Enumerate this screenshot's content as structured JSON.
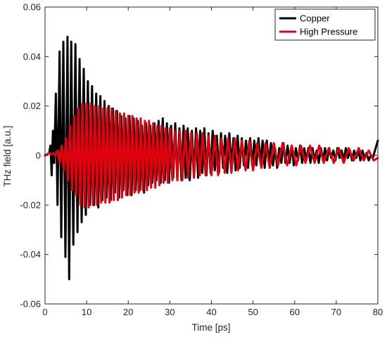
{
  "chart_data": {
    "type": "line",
    "title": "",
    "xlabel": "Time [ps]",
    "ylabel": "THz field [a.u.]",
    "xlim": [
      0,
      80
    ],
    "ylim": [
      -0.06,
      0.06
    ],
    "x_ticks": [
      0,
      10,
      20,
      30,
      40,
      50,
      60,
      70,
      80
    ],
    "y_ticks": [
      -0.06,
      -0.04,
      -0.02,
      0,
      0.02,
      0.04,
      0.06
    ],
    "x_tick_labels": [
      "0",
      "10",
      "20",
      "30",
      "40",
      "50",
      "60",
      "70",
      "80"
    ],
    "y_tick_labels": [
      "-0.06",
      "-0.04",
      "-0.02",
      "0",
      "0.02",
      "0.04",
      "0.06"
    ],
    "grid": false,
    "legend_position": "top-right",
    "series": [
      {
        "name": "Copper",
        "color": "#000000",
        "points": [
          [
            0,
            0
          ],
          [
            0.5,
            0.0005
          ],
          [
            1.0,
            0.001
          ],
          [
            1.3,
            0.004
          ],
          [
            1.6,
            -0.008
          ],
          [
            1.9,
            0.01
          ],
          [
            2.2,
            -0.003
          ],
          [
            2.6,
            0.025
          ],
          [
            3.0,
            -0.02
          ],
          [
            3.5,
            0.042
          ],
          [
            3.9,
            -0.033
          ],
          [
            4.4,
            0.046
          ],
          [
            4.9,
            -0.041
          ],
          [
            5.4,
            0.048
          ],
          [
            5.8,
            -0.05
          ],
          [
            6.3,
            0.046
          ],
          [
            6.8,
            -0.036
          ],
          [
            7.3,
            0.045
          ],
          [
            7.8,
            -0.031
          ],
          [
            8.3,
            0.039
          ],
          [
            8.8,
            -0.027
          ],
          [
            9.3,
            0.035
          ],
          [
            9.8,
            -0.024
          ],
          [
            10.3,
            0.03
          ],
          [
            10.8,
            -0.02
          ],
          [
            11.3,
            0.028
          ],
          [
            11.8,
            -0.02
          ],
          [
            12.3,
            0.025
          ],
          [
            12.8,
            -0.021
          ],
          [
            13.3,
            0.024
          ],
          [
            13.8,
            -0.018
          ],
          [
            14.3,
            0.022
          ],
          [
            14.8,
            -0.017
          ],
          [
            15.3,
            0.02
          ],
          [
            15.8,
            -0.018
          ],
          [
            16.3,
            0.019
          ],
          [
            16.8,
            -0.015
          ],
          [
            17.3,
            0.018
          ],
          [
            17.8,
            -0.017
          ],
          [
            18.3,
            0.016
          ],
          [
            18.8,
            -0.014
          ],
          [
            19.3,
            0.015
          ],
          [
            19.8,
            -0.016
          ],
          [
            20.3,
            0.016
          ],
          [
            20.8,
            -0.016
          ],
          [
            21.3,
            0.015
          ],
          [
            21.8,
            -0.014
          ],
          [
            22.3,
            0.014
          ],
          [
            22.8,
            -0.014
          ],
          [
            23.3,
            0.012
          ],
          [
            23.8,
            -0.015
          ],
          [
            24.3,
            0.013
          ],
          [
            24.8,
            -0.012
          ],
          [
            25.3,
            0.012
          ],
          [
            25.8,
            -0.011
          ],
          [
            26.3,
            0.013
          ],
          [
            26.8,
            -0.01
          ],
          [
            27.3,
            0.014
          ],
          [
            27.8,
            -0.011
          ],
          [
            28.3,
            0.015
          ],
          [
            28.8,
            -0.01
          ],
          [
            29.3,
            0.013
          ],
          [
            29.8,
            -0.011
          ],
          [
            30.3,
            0.012
          ],
          [
            30.8,
            -0.009
          ],
          [
            31.3,
            0.013
          ],
          [
            31.8,
            -0.01
          ],
          [
            32.3,
            0.011
          ],
          [
            32.8,
            -0.01
          ],
          [
            33.3,
            0.012
          ],
          [
            33.8,
            -0.009
          ],
          [
            34.3,
            0.011
          ],
          [
            34.8,
            -0.01
          ],
          [
            35.3,
            0.01
          ],
          [
            35.8,
            -0.008
          ],
          [
            36.3,
            0.011
          ],
          [
            36.8,
            -0.009
          ],
          [
            37.3,
            0.01
          ],
          [
            37.8,
            -0.007
          ],
          [
            38.3,
            0.011
          ],
          [
            38.8,
            -0.008
          ],
          [
            39.3,
            0.009
          ],
          [
            39.8,
            -0.007
          ],
          [
            40.3,
            0.01
          ],
          [
            40.8,
            -0.006
          ],
          [
            41.3,
            0.008
          ],
          [
            41.8,
            -0.007
          ],
          [
            42.3,
            0.009
          ],
          [
            42.8,
            -0.005
          ],
          [
            43.3,
            0.008
          ],
          [
            43.8,
            -0.007
          ],
          [
            44.3,
            0.009
          ],
          [
            44.8,
            -0.004
          ],
          [
            45.3,
            0.007
          ],
          [
            45.8,
            -0.006
          ],
          [
            46.3,
            0.008
          ],
          [
            46.8,
            -0.005
          ],
          [
            47.3,
            0.007
          ],
          [
            47.8,
            -0.004
          ],
          [
            48.3,
            0.006
          ],
          [
            48.8,
            -0.005
          ],
          [
            49.3,
            0.007
          ],
          [
            49.8,
            -0.004
          ],
          [
            50.3,
            0.006
          ],
          [
            50.8,
            -0.004
          ],
          [
            51.3,
            0.007
          ],
          [
            51.8,
            -0.003
          ],
          [
            52.3,
            0.006
          ],
          [
            52.8,
            -0.005
          ],
          [
            53.3,
            0.006
          ],
          [
            53.8,
            -0.003
          ],
          [
            54.3,
            0.005
          ],
          [
            54.8,
            -0.004
          ],
          [
            55.3,
            0.003
          ],
          [
            55.8,
            -0.005
          ],
          [
            56.3,
            0.003
          ],
          [
            56.8,
            -0.003
          ],
          [
            57.3,
            0.005
          ],
          [
            57.8,
            -0.003
          ],
          [
            58.3,
            0.004
          ],
          [
            58.8,
            -0.003
          ],
          [
            59.3,
            0.004
          ],
          [
            59.8,
            -0.004
          ],
          [
            60.3,
            0.003
          ],
          [
            60.8,
            -0.002
          ],
          [
            61.3,
            0.004
          ],
          [
            61.8,
            -0.003
          ],
          [
            62.3,
            0.003
          ],
          [
            62.8,
            -0.002
          ],
          [
            63.3,
            0.003
          ],
          [
            63.8,
            -0.003
          ],
          [
            64.3,
            0.003
          ],
          [
            64.8,
            -0.002
          ],
          [
            65.3,
            0.002
          ],
          [
            65.8,
            -0.003
          ],
          [
            66.3,
            0.003
          ],
          [
            66.8,
            -0.002
          ],
          [
            67.3,
            0.003
          ],
          [
            67.8,
            -0.002
          ],
          [
            68.3,
            0.003
          ],
          [
            68.8,
            -0.001
          ],
          [
            69.3,
            0.002
          ],
          [
            69.8,
            -0.002
          ],
          [
            70.3,
            0.003
          ],
          [
            70.8,
            -0.001
          ],
          [
            71.3,
            0.002
          ],
          [
            71.8,
            -0.002
          ],
          [
            72.3,
            0.003
          ],
          [
            72.8,
            -0.001
          ],
          [
            73.3,
            0.002
          ],
          [
            73.8,
            -0.002
          ],
          [
            74.3,
            0.002
          ],
          [
            74.8,
            -0.001
          ],
          [
            75.3,
            0.002
          ],
          [
            75.8,
            -0.002
          ],
          [
            76.3,
            0.002
          ],
          [
            76.8,
            -0.001
          ],
          [
            77.3,
            0.001
          ],
          [
            77.8,
            -0.002
          ],
          [
            78.3,
            0.0
          ],
          [
            78.8,
            -0.001
          ],
          [
            79.3,
            0.002
          ],
          [
            80.0,
            0.006
          ]
        ]
      },
      {
        "name": "High Pressure",
        "color": "#e3000f",
        "points": [
          [
            0,
            0
          ],
          [
            0.5,
            0.0005
          ],
          [
            1.0,
            0.001
          ],
          [
            1.5,
            0.0005
          ],
          [
            2.0,
            0.001
          ],
          [
            2.5,
            0.0
          ],
          [
            3.0,
            0.002
          ],
          [
            3.5,
            -0.003
          ],
          [
            4.0,
            0.004
          ],
          [
            4.5,
            -0.006
          ],
          [
            5.0,
            0.007
          ],
          [
            5.5,
            -0.01
          ],
          [
            6.0,
            0.012
          ],
          [
            6.5,
            -0.014
          ],
          [
            7.0,
            0.016
          ],
          [
            7.5,
            -0.016
          ],
          [
            8.0,
            0.019
          ],
          [
            8.5,
            -0.02
          ],
          [
            9.0,
            0.021
          ],
          [
            9.5,
            -0.021
          ],
          [
            10.0,
            0.021
          ],
          [
            10.5,
            -0.021
          ],
          [
            11.0,
            0.021
          ],
          [
            11.5,
            -0.02
          ],
          [
            12.0,
            0.02
          ],
          [
            12.5,
            -0.02
          ],
          [
            13.0,
            0.02
          ],
          [
            13.5,
            -0.019
          ],
          [
            14.0,
            0.019
          ],
          [
            14.5,
            -0.019
          ],
          [
            15.0,
            0.019
          ],
          [
            15.5,
            -0.019
          ],
          [
            16.0,
            0.019
          ],
          [
            16.5,
            -0.018
          ],
          [
            17.0,
            0.018
          ],
          [
            17.5,
            -0.018
          ],
          [
            18.0,
            0.017
          ],
          [
            18.5,
            -0.017
          ],
          [
            19.0,
            0.017
          ],
          [
            19.5,
            -0.016
          ],
          [
            20.0,
            0.016
          ],
          [
            20.5,
            -0.016
          ],
          [
            21.0,
            0.016
          ],
          [
            21.5,
            -0.015
          ],
          [
            22.0,
            0.015
          ],
          [
            22.5,
            -0.015
          ],
          [
            23.0,
            0.015
          ],
          [
            23.5,
            -0.014
          ],
          [
            24.0,
            0.014
          ],
          [
            24.5,
            -0.014
          ],
          [
            25.0,
            0.014
          ],
          [
            25.5,
            -0.013
          ],
          [
            26.0,
            0.013
          ],
          [
            26.5,
            -0.013
          ],
          [
            27.0,
            0.012
          ],
          [
            27.5,
            -0.012
          ],
          [
            28.0,
            0.012
          ],
          [
            28.5,
            -0.011
          ],
          [
            29.0,
            0.011
          ],
          [
            29.5,
            -0.011
          ],
          [
            30.0,
            0.011
          ],
          [
            30.6,
            -0.01
          ],
          [
            31.2,
            0.01
          ],
          [
            31.8,
            -0.01
          ],
          [
            32.4,
            0.01
          ],
          [
            33.0,
            -0.01
          ],
          [
            33.7,
            0.01
          ],
          [
            34.4,
            -0.009
          ],
          [
            35.1,
            0.009
          ],
          [
            35.8,
            -0.009
          ],
          [
            36.5,
            0.009
          ],
          [
            37.2,
            -0.008
          ],
          [
            37.9,
            0.009
          ],
          [
            38.6,
            -0.008
          ],
          [
            39.3,
            0.008
          ],
          [
            40.0,
            -0.008
          ],
          [
            40.8,
            0.008
          ],
          [
            41.6,
            -0.008
          ],
          [
            42.4,
            0.007
          ],
          [
            43.2,
            -0.007
          ],
          [
            44.0,
            0.007
          ],
          [
            44.8,
            -0.007
          ],
          [
            45.6,
            0.007
          ],
          [
            46.4,
            -0.006
          ],
          [
            47.3,
            0.006
          ],
          [
            48.2,
            -0.006
          ],
          [
            49.1,
            0.006
          ],
          [
            50.0,
            -0.006
          ],
          [
            51.0,
            0.005
          ],
          [
            52.0,
            -0.005
          ],
          [
            53.0,
            0.005
          ],
          [
            54.0,
            -0.005
          ],
          [
            55.0,
            0.005
          ],
          [
            56.0,
            -0.004
          ],
          [
            57.1,
            0.005
          ],
          [
            58.2,
            -0.004
          ],
          [
            59.3,
            0.004
          ],
          [
            60.4,
            -0.004
          ],
          [
            61.5,
            0.004
          ],
          [
            62.6,
            -0.003
          ],
          [
            63.7,
            0.004
          ],
          [
            64.8,
            -0.003
          ],
          [
            65.9,
            0.004
          ],
          [
            67.0,
            -0.003
          ],
          [
            68.2,
            0.003
          ],
          [
            69.4,
            -0.003
          ],
          [
            70.6,
            0.003
          ],
          [
            71.8,
            -0.003
          ],
          [
            73.0,
            0.003
          ],
          [
            74.2,
            -0.002
          ],
          [
            75.4,
            0.003
          ],
          [
            76.6,
            -0.002
          ],
          [
            77.8,
            0.002
          ],
          [
            79.0,
            -0.002
          ],
          [
            80.0,
            -0.001
          ]
        ]
      }
    ]
  }
}
